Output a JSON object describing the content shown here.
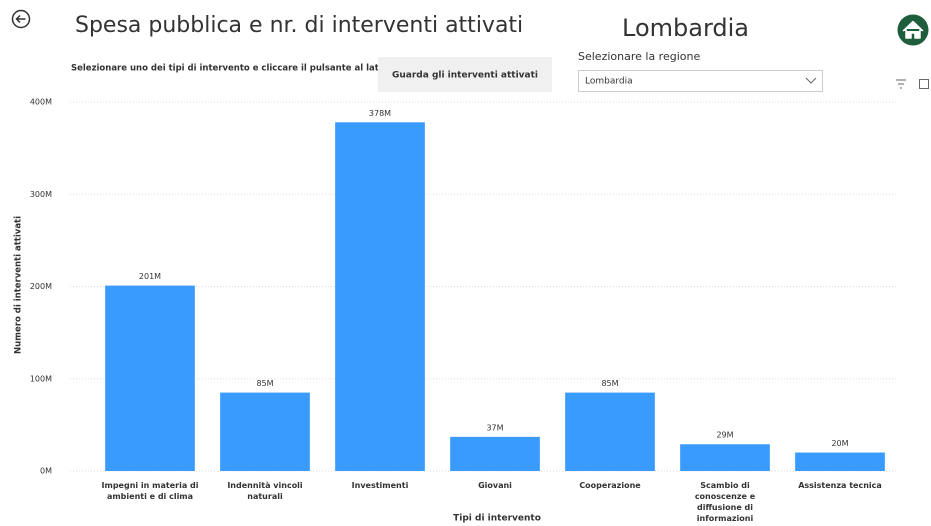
{
  "header": {
    "title": "Spesa pubblica e nr. di interventi attivati",
    "region_title": "Lombardia",
    "home_link": "Torna alla home page"
  },
  "controls": {
    "instruction": "Selezionare uno dei tipi di intervento e cliccare il pulsante al lato",
    "button": "Guarda gli interventi attivati",
    "region_label": "Selezionare la regione",
    "region_selected": "Lombardia"
  },
  "chart_data": {
    "type": "bar",
    "x_label": "Tipi di intervento",
    "y_label": "Numero di interventi attivati",
    "categories": [
      "Impegni in materia di ambienti e di clima",
      "Indennità vincoli naturali",
      "Investimenti",
      "Giovani",
      "Cooperazione",
      "Scambio di conoscenze e diffusione di informazioni",
      "Assistenza tecnica"
    ],
    "values": [
      201000000,
      85000000,
      378000000,
      37000000,
      85000000,
      29000000,
      20000000
    ],
    "value_labels": [
      "201M",
      "85M",
      "378M",
      "37M",
      "85M",
      "29M",
      "20M"
    ],
    "color": "#3a9bff",
    "ylim": [
      0,
      400000000
    ],
    "yticks": [
      {
        "value": 0,
        "label": "0M"
      },
      {
        "value": 100000000,
        "label": "100M"
      },
      {
        "value": 200000000,
        "label": "200M"
      },
      {
        "value": 300000000,
        "label": "300M"
      },
      {
        "value": 400000000,
        "label": "400M"
      }
    ],
    "grid": true
  }
}
